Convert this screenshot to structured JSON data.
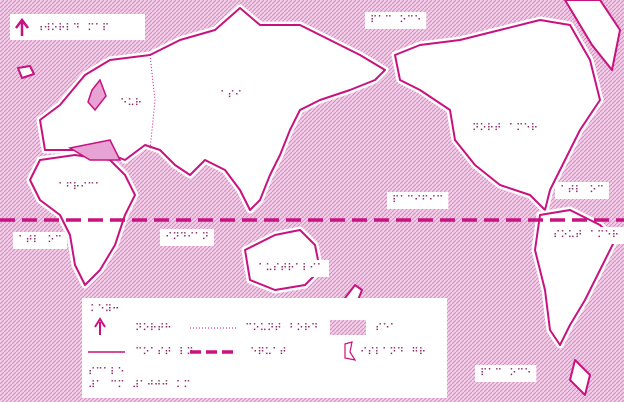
{
  "map": {
    "title": "⠰⠺⠕⠗⠇⠙⠀⠍⠁⠏",
    "labels": [
      {
        "text": "⠏⠁⠉⠀⠕⠉⠑"
      },
      {
        "text": "⠑⠥⠗"
      },
      {
        "text": "⠁⠎⠊"
      },
      {
        "text": "⠝⠕⠗⠞⠀⠁⠍⠑⠗"
      },
      {
        "text": "⠁⠋⠗⠊⠉⠁"
      },
      {
        "text": "⠁⠞⠇⠀⠕⠉"
      },
      {
        "text": "⠏⠁⠉⠊⠋⠊⠉"
      },
      {
        "text": "⠁⠞⠇⠀⠕⠉"
      },
      {
        "text": "⠊⠝⠙⠊⠁⠝"
      },
      {
        "text": "⠎⠕⠥⠞⠀⠁⠍⠑⠗"
      },
      {
        "text": "⠁⠥⠎⠞⠗⠁⠇⠊⠁"
      },
      {
        "text": "⠏⠁⠉⠀⠕⠉⠑"
      }
    ]
  },
  "legend": {
    "title": "⠅⠑⠽⠒",
    "north": "⠝⠕⠗⠞⠓",
    "border": "⠉⠕⠥⠝⠞⠀⠃⠕⠗⠙",
    "sea": "⠎⠑⠁",
    "coast": "⠉⠕⠁⠎⠞⠀⠇⠝",
    "equator": "⠑⠟⠥⠁⠞",
    "island": "⠊⠎⠇⠁⠝⠙⠀⠛⠗",
    "scale_title": "⠎⠉⠁⠇⠑",
    "scale": "⠼⠁⠀⠉⠍⠀⠼⠁⠚⠚⠚⠀⠅⠍"
  }
}
